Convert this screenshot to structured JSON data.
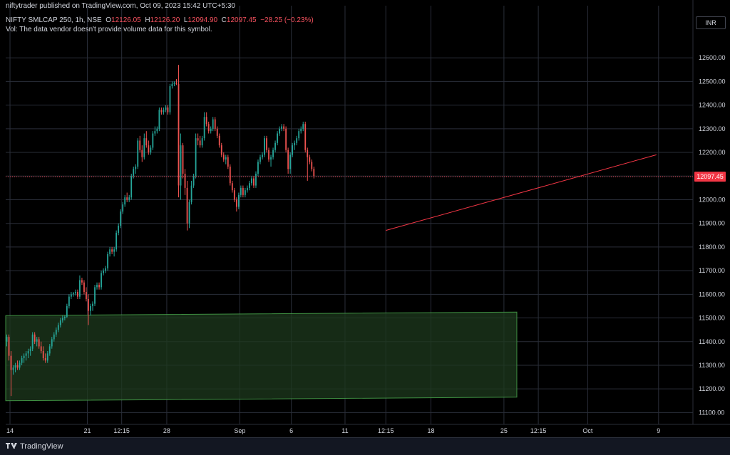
{
  "header": {
    "publisher": "niftytrader published on TradingView.com, Oct 09, 2023 15:42 UTC+5:30",
    "symbol": "NIFTY SMLCAP 250, 1h, NSE",
    "ohlc": {
      "o_label": "O",
      "o": "12126.05",
      "h_label": "H",
      "h": "12126.20",
      "l_label": "L",
      "l": "12094.90",
      "c_label": "C",
      "c": "12097.45",
      "change": "−28.25 (−0.23%)"
    },
    "vol_note": "Vol: The data vendor doesn't provide volume data for this symbol."
  },
  "currency": "INR",
  "footer": {
    "brand": "TradingView",
    "logo_icon": "tradingview-logo-icon"
  },
  "colors": {
    "up": "#26a69a",
    "down": "#ef5350",
    "grid": "#2a2e39",
    "trendline": "#f23645",
    "zone_fill": "#1e3a1e",
    "zone_border": "#4caf50",
    "last_price_bg": "#f23645",
    "text": "#d1d4dc"
  },
  "chart_data": {
    "type": "candlestick",
    "y_ticks": [
      "11100.00",
      "11200.00",
      "11300.00",
      "11400.00",
      "11500.00",
      "11600.00",
      "11700.00",
      "11800.00",
      "11900.00",
      "12000.00",
      "12100.00",
      "12200.00",
      "12300.00",
      "12400.00",
      "12500.00",
      "12600.00"
    ],
    "ylim": [
      11050,
      12700
    ],
    "x_ticks": [
      {
        "label": "14",
        "i": 2
      },
      {
        "label": "21",
        "i": 38
      },
      {
        "label": "12:15",
        "i": 54
      },
      {
        "label": "28",
        "i": 75
      },
      {
        "label": "Sep",
        "i": 109
      },
      {
        "label": "6",
        "i": 133
      },
      {
        "label": "11",
        "i": 158
      },
      {
        "label": "12:15",
        "i": 177
      },
      {
        "label": "18",
        "i": 198
      },
      {
        "label": "25",
        "i": 232
      },
      {
        "label": "12:15",
        "i": 248
      },
      {
        "label": "Oct",
        "i": 271
      },
      {
        "label": "9",
        "i": 304
      }
    ],
    "x_range": [
      0,
      320
    ],
    "last_price": "12097.45",
    "last_price_value": 12097.45,
    "candles": [
      [
        11400,
        11430,
        11380,
        11420
      ],
      [
        11420,
        11430,
        11320,
        11340
      ],
      [
        11340,
        11360,
        11170,
        11280
      ],
      [
        11280,
        11300,
        11260,
        11290
      ],
      [
        11290,
        11310,
        11270,
        11300
      ],
      [
        11300,
        11320,
        11280,
        11290
      ],
      [
        11290,
        11320,
        11280,
        11310
      ],
      [
        11310,
        11340,
        11300,
        11330
      ],
      [
        11330,
        11350,
        11310,
        11340
      ],
      [
        11340,
        11360,
        11320,
        11350
      ],
      [
        11350,
        11370,
        11330,
        11360
      ],
      [
        11360,
        11380,
        11340,
        11370
      ],
      [
        11370,
        11440,
        11360,
        11430
      ],
      [
        11430,
        11440,
        11390,
        11400
      ],
      [
        11400,
        11420,
        11380,
        11410
      ],
      [
        11410,
        11420,
        11370,
        11380
      ],
      [
        11380,
        11400,
        11350,
        11360
      ],
      [
        11360,
        11380,
        11320,
        11330
      ],
      [
        11330,
        11350,
        11310,
        11320
      ],
      [
        11320,
        11360,
        11310,
        11350
      ],
      [
        11350,
        11390,
        11340,
        11380
      ],
      [
        11380,
        11420,
        11370,
        11410
      ],
      [
        11410,
        11440,
        11400,
        11430
      ],
      [
        11430,
        11460,
        11420,
        11450
      ],
      [
        11450,
        11480,
        11440,
        11470
      ],
      [
        11470,
        11500,
        11460,
        11490
      ],
      [
        11490,
        11510,
        11480,
        11500
      ],
      [
        11500,
        11510,
        11490,
        11505
      ],
      [
        11505,
        11560,
        11500,
        11550
      ],
      [
        11550,
        11600,
        11540,
        11590
      ],
      [
        11590,
        11610,
        11580,
        11600
      ],
      [
        11600,
        11610,
        11590,
        11605
      ],
      [
        11605,
        11620,
        11595,
        11610
      ],
      [
        11610,
        11620,
        11580,
        11590
      ],
      [
        11590,
        11680,
        11580,
        11660
      ],
      [
        11660,
        11670,
        11640,
        11650
      ],
      [
        11650,
        11660,
        11600,
        11610
      ],
      [
        11610,
        11630,
        11570,
        11580
      ],
      [
        11580,
        11600,
        11470,
        11530
      ],
      [
        11530,
        11560,
        11510,
        11550
      ],
      [
        11550,
        11570,
        11530,
        11560
      ],
      [
        11560,
        11640,
        11550,
        11630
      ],
      [
        11630,
        11650,
        11620,
        11640
      ],
      [
        11640,
        11650,
        11620,
        11630
      ],
      [
        11630,
        11700,
        11620,
        11690
      ],
      [
        11690,
        11710,
        11680,
        11700
      ],
      [
        11700,
        11720,
        11690,
        11710
      ],
      [
        11710,
        11780,
        11700,
        11770
      ],
      [
        11770,
        11800,
        11760,
        11790
      ],
      [
        11790,
        11800,
        11770,
        11780
      ],
      [
        11780,
        11800,
        11760,
        11790
      ],
      [
        11790,
        11870,
        11780,
        11860
      ],
      [
        11860,
        11900,
        11850,
        11890
      ],
      [
        11890,
        11960,
        11880,
        11950
      ],
      [
        11950,
        11990,
        11940,
        11980
      ],
      [
        11980,
        12020,
        11970,
        12010
      ],
      [
        12010,
        12030,
        11990,
        12000
      ],
      [
        12000,
        12020,
        11990,
        12010
      ],
      [
        12010,
        12110,
        12000,
        12100
      ],
      [
        12100,
        12140,
        12090,
        12130
      ],
      [
        12130,
        12150,
        12110,
        12140
      ],
      [
        12140,
        12260,
        12130,
        12250
      ],
      [
        12250,
        12270,
        12200,
        12210
      ],
      [
        12210,
        12230,
        12160,
        12180
      ],
      [
        12180,
        12280,
        12170,
        12260
      ],
      [
        12260,
        12290,
        12220,
        12230
      ],
      [
        12230,
        12250,
        12190,
        12200
      ],
      [
        12200,
        12230,
        12190,
        12220
      ],
      [
        12220,
        12290,
        12210,
        12280
      ],
      [
        12280,
        12310,
        12270,
        12290
      ],
      [
        12290,
        12310,
        12280,
        12300
      ],
      [
        12300,
        12390,
        12290,
        12380
      ],
      [
        12380,
        12390,
        12360,
        12370
      ],
      [
        12370,
        12390,
        12360,
        12380
      ],
      [
        12380,
        12400,
        12370,
        12390
      ],
      [
        12390,
        12400,
        12360,
        12370
      ],
      [
        12370,
        12490,
        12360,
        12480
      ],
      [
        12480,
        12500,
        12470,
        12490
      ],
      [
        12490,
        12500,
        12480,
        12495
      ],
      [
        12495,
        12510,
        12485,
        12490
      ],
      [
        12490,
        12570,
        12010,
        12060
      ],
      [
        12060,
        12280,
        12000,
        12230
      ],
      [
        12230,
        12240,
        12090,
        12110
      ],
      [
        12110,
        12130,
        12020,
        12050
      ],
      [
        12050,
        12080,
        11870,
        11900
      ],
      [
        11900,
        12000,
        11880,
        11990
      ],
      [
        11990,
        12080,
        11980,
        12060
      ],
      [
        12060,
        12110,
        12050,
        12100
      ],
      [
        12100,
        12280,
        12090,
        12260
      ],
      [
        12260,
        12280,
        12230,
        12250
      ],
      [
        12250,
        12270,
        12220,
        12230
      ],
      [
        12230,
        12270,
        12220,
        12260
      ],
      [
        12260,
        12370,
        12250,
        12350
      ],
      [
        12350,
        12370,
        12310,
        12320
      ],
      [
        12320,
        12330,
        12280,
        12290
      ],
      [
        12290,
        12310,
        12280,
        12300
      ],
      [
        12300,
        12350,
        12290,
        12340
      ],
      [
        12340,
        12350,
        12290,
        12300
      ],
      [
        12300,
        12310,
        12260,
        12270
      ],
      [
        12270,
        12280,
        12220,
        12230
      ],
      [
        12230,
        12240,
        12180,
        12190
      ],
      [
        12190,
        12200,
        12160,
        12170
      ],
      [
        12170,
        12190,
        12150,
        12180
      ],
      [
        12180,
        12190,
        12130,
        12140
      ],
      [
        12140,
        12150,
        12060,
        12070
      ],
      [
        12070,
        12080,
        12030,
        12040
      ],
      [
        12040,
        12050,
        11990,
        12000
      ],
      [
        12000,
        12010,
        11950,
        11970
      ],
      [
        11970,
        12030,
        11960,
        12020
      ],
      [
        12020,
        12060,
        12010,
        12050
      ],
      [
        12050,
        12060,
        12010,
        12020
      ],
      [
        12020,
        12050,
        12010,
        12040
      ],
      [
        12040,
        12060,
        12030,
        12050
      ],
      [
        12050,
        12080,
        12040,
        12070
      ],
      [
        12070,
        12100,
        12060,
        12090
      ],
      [
        12090,
        12100,
        12050,
        12060
      ],
      [
        12060,
        12120,
        12050,
        12110
      ],
      [
        12110,
        12170,
        12100,
        12160
      ],
      [
        12160,
        12190,
        12150,
        12180
      ],
      [
        12180,
        12200,
        12170,
        12190
      ],
      [
        12190,
        12270,
        12180,
        12260
      ],
      [
        12260,
        12270,
        12200,
        12210
      ],
      [
        12210,
        12220,
        12160,
        12170
      ],
      [
        12170,
        12190,
        12140,
        12180
      ],
      [
        12180,
        12220,
        12170,
        12210
      ],
      [
        12210,
        12250,
        12200,
        12240
      ],
      [
        12240,
        12290,
        12230,
        12280
      ],
      [
        12280,
        12310,
        12270,
        12300
      ],
      [
        12300,
        12320,
        12290,
        12310
      ],
      [
        12310,
        12320,
        12290,
        12300
      ],
      [
        12300,
        12310,
        12200,
        12210
      ],
      [
        12210,
        12220,
        12110,
        12130
      ],
      [
        12130,
        12200,
        12110,
        12190
      ],
      [
        12190,
        12240,
        12180,
        12230
      ],
      [
        12230,
        12250,
        12210,
        12240
      ],
      [
        12240,
        12270,
        12230,
        12260
      ],
      [
        12260,
        12300,
        12250,
        12290
      ],
      [
        12290,
        12310,
        12280,
        12300
      ],
      [
        12300,
        12330,
        12290,
        12320
      ],
      [
        12320,
        12330,
        12200,
        12210
      ],
      [
        12210,
        12220,
        12080,
        12180
      ],
      [
        12180,
        12190,
        12150,
        12160
      ],
      [
        12160,
        12170,
        12120,
        12130
      ],
      [
        12130,
        12140,
        12090,
        12100
      ]
    ],
    "trendline": [
      {
        "i": 177,
        "y": 11870
      },
      {
        "i": 303,
        "y": 12190
      }
    ],
    "zone": [
      {
        "i": 0,
        "y_top": 11510,
        "y_bottom": 11150
      },
      {
        "i": 238,
        "y_top": 11525,
        "y_bottom": 11165
      }
    ]
  }
}
